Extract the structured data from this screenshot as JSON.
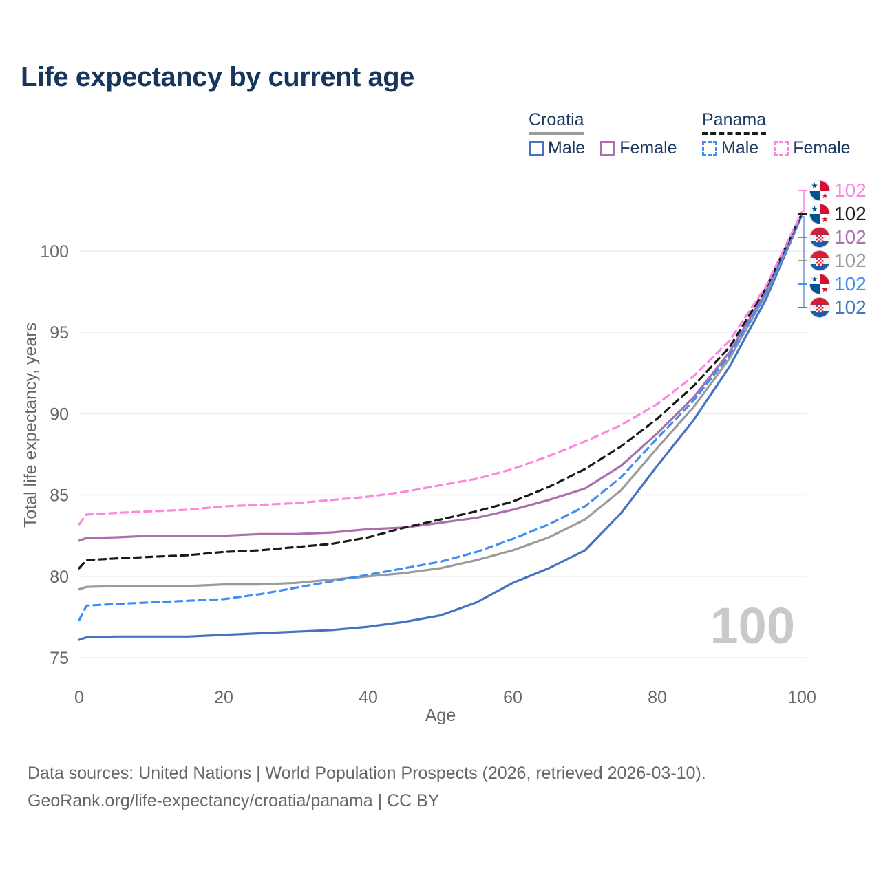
{
  "title": "Life expectancy by current age",
  "legend": {
    "groups": [
      {
        "label": "Croatia",
        "line_style": "solid",
        "line_color": "#9b9b9b",
        "items": [
          {
            "label": "Male",
            "color": "#4673c1",
            "dash": false
          },
          {
            "label": "Female",
            "color": "#ab6fae",
            "dash": false
          }
        ]
      },
      {
        "label": "Panama",
        "line_style": "dashed",
        "line_color": "#1a1a1a",
        "items": [
          {
            "label": "Male",
            "color": "#3f8df5",
            "dash": true
          },
          {
            "label": "Female",
            "color": "#ff85e2",
            "dash": true
          }
        ]
      }
    ]
  },
  "axes": {
    "x": {
      "label": "Age",
      "ticks": [
        0,
        20,
        40,
        60,
        80,
        100
      ]
    },
    "y": {
      "label": "Total life expectancy, years",
      "ticks": [
        75,
        80,
        85,
        90,
        95,
        100
      ]
    }
  },
  "hover_age": "100",
  "chart_data": {
    "type": "line",
    "title": "Life expectancy by current age",
    "xlabel": "Age",
    "ylabel": "Total life expectancy, years",
    "xlim": [
      0,
      100
    ],
    "ylim": [
      74.5,
      104
    ],
    "grid": "horizontal",
    "legend_position": "top-right",
    "x": [
      0,
      1,
      5,
      10,
      15,
      20,
      25,
      30,
      35,
      40,
      45,
      50,
      55,
      60,
      65,
      70,
      75,
      80,
      85,
      90,
      95,
      100
    ],
    "series": [
      {
        "name": "Panama Female",
        "country": "Panama",
        "sex": "Female",
        "style": "dashed",
        "color": "#ff85e2",
        "end_label": "102",
        "values": [
          83.2,
          83.8,
          83.9,
          84.0,
          84.1,
          84.3,
          84.4,
          84.5,
          84.7,
          84.9,
          85.2,
          85.6,
          86.0,
          86.6,
          87.4,
          88.3,
          89.3,
          90.6,
          92.3,
          94.5,
          97.8,
          102.4
        ]
      },
      {
        "name": "Panama Total",
        "country": "Panama",
        "sex": "Both",
        "style": "dashed",
        "color": "#1a1a1a",
        "end_label": "102",
        "values": [
          80.5,
          81.0,
          81.1,
          81.2,
          81.3,
          81.5,
          81.6,
          81.8,
          82.0,
          82.4,
          83.0,
          83.5,
          84.0,
          84.6,
          85.5,
          86.6,
          88.0,
          89.7,
          91.7,
          94.1,
          97.7,
          102.3
        ]
      },
      {
        "name": "Croatia Female",
        "country": "Croatia",
        "sex": "Female",
        "style": "solid",
        "color": "#ab6fae",
        "end_label": "102",
        "values": [
          82.2,
          82.35,
          82.4,
          82.5,
          82.5,
          82.5,
          82.6,
          82.6,
          82.7,
          82.9,
          83.0,
          83.3,
          83.6,
          84.1,
          84.7,
          85.4,
          86.8,
          88.8,
          91.0,
          93.8,
          97.5,
          102.3
        ]
      },
      {
        "name": "Croatia Total",
        "country": "Croatia",
        "sex": "Both",
        "style": "solid",
        "color": "#9b9b9b",
        "end_label": "102",
        "values": [
          79.2,
          79.35,
          79.4,
          79.4,
          79.4,
          79.5,
          79.5,
          79.6,
          79.8,
          80.0,
          80.2,
          80.5,
          81.0,
          81.6,
          82.4,
          83.5,
          85.3,
          87.9,
          90.4,
          93.4,
          97.3,
          102.2
        ]
      },
      {
        "name": "Panama Male",
        "country": "Panama",
        "sex": "Male",
        "style": "dashed",
        "color": "#3f8df5",
        "end_label": "102",
        "values": [
          77.3,
          78.2,
          78.3,
          78.4,
          78.5,
          78.6,
          78.9,
          79.3,
          79.7,
          80.1,
          80.5,
          80.9,
          81.5,
          82.3,
          83.2,
          84.3,
          86.1,
          88.5,
          90.8,
          93.6,
          97.4,
          102.2
        ]
      },
      {
        "name": "Croatia Male",
        "country": "Croatia",
        "sex": "Male",
        "style": "solid",
        "color": "#4673c1",
        "end_label": "102",
        "values": [
          76.1,
          76.25,
          76.3,
          76.3,
          76.3,
          76.4,
          76.5,
          76.6,
          76.7,
          76.9,
          77.2,
          77.6,
          78.4,
          79.6,
          80.5,
          81.6,
          83.9,
          86.8,
          89.6,
          92.9,
          97.0,
          102.2
        ]
      }
    ]
  },
  "flag_colors": {
    "panama_red": "#d21034",
    "panama_blue": "#005293",
    "croatia_red": "#d61f37",
    "croatia_blue": "#1b5bab"
  },
  "footer": {
    "line1": "Data sources: United Nations | World Population Prospects (2026, retrieved 2026-03-10).",
    "line2": "GeoRank.org/life-expectancy/croatia/panama | CC BY"
  }
}
